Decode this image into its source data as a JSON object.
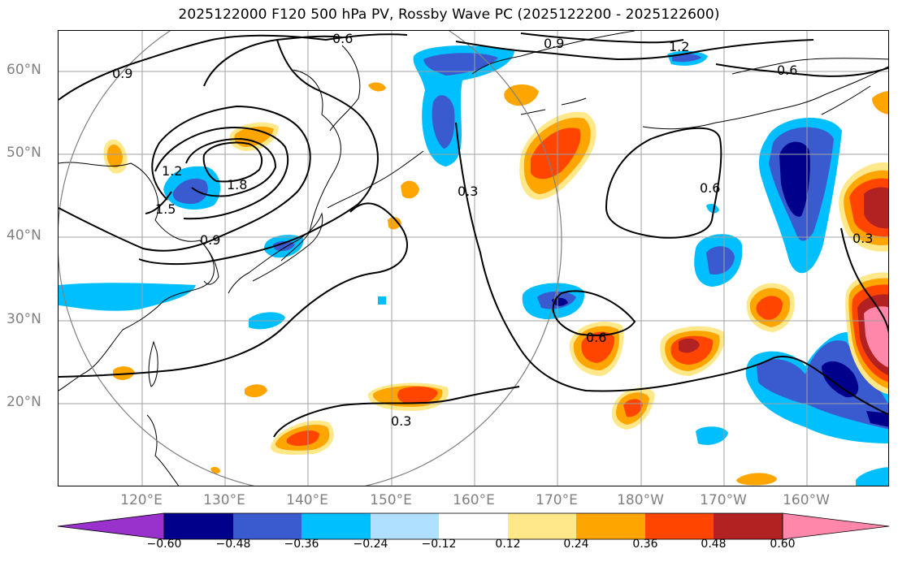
{
  "title": "2025122000 F120 500 hPa PV, Rossby Wave PC (2025122200 - 2025122600)",
  "lat_labels": [
    "60°N",
    "50°N",
    "40°N",
    "30°N",
    "20°N"
  ],
  "lon_labels": [
    "120°E",
    "130°E",
    "140°E",
    "150°E",
    "160°E",
    "170°E",
    "180°W",
    "170°W",
    "160°W"
  ],
  "contour_labels": [
    "0.6",
    "0.9",
    "1.2",
    "0.6",
    "0.9",
    "1.2",
    "1.5",
    "1.8",
    "0.9",
    "0.3",
    "0.6",
    "0.6",
    "0.3",
    "0.3"
  ],
  "colorbar": {
    "ticks": [
      "−0.60",
      "−0.48",
      "−0.36",
      "−0.24",
      "−0.12",
      "0.12",
      "0.24",
      "0.36",
      "0.48",
      "0.60"
    ],
    "colors": [
      "#9932cc",
      "#00008b",
      "#3a5bd0",
      "#00bfff",
      "#b0e0ff",
      "#ffffff",
      "#ffe88a",
      "#ffa500",
      "#ff4500",
      "#b22222",
      "#ff88aa"
    ]
  },
  "legend_colors": {
    "neg_strong": "#00008b",
    "neg_mid": "#3a5bd0",
    "neg_light": "#00bfff",
    "neg_pale": "#b0e0ff",
    "pos_pale": "#ffe88a",
    "pos_mid": "#ffa500",
    "pos_strong": "#ff4500",
    "pos_dark": "#b22222",
    "pos_max": "#ff88aa"
  }
}
